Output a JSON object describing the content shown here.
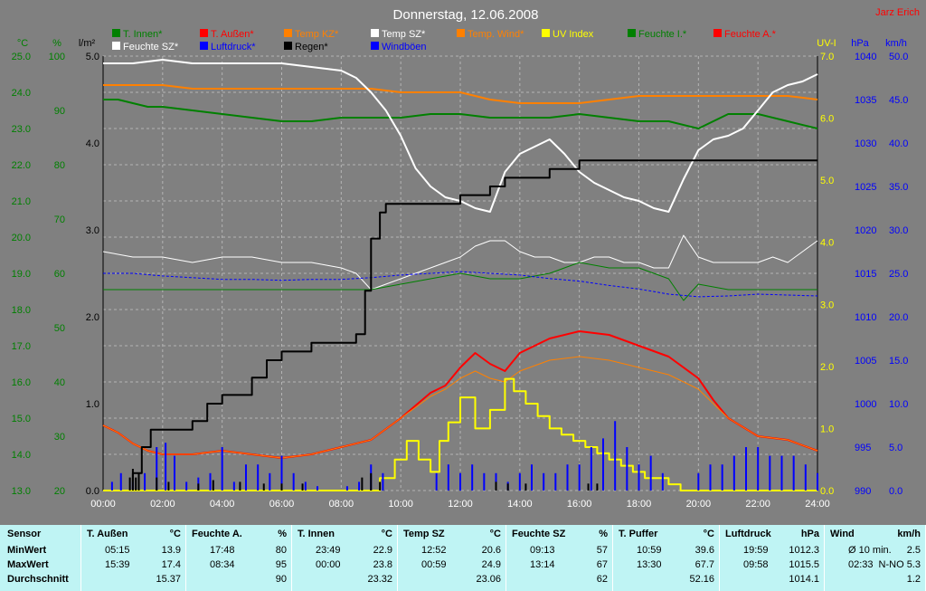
{
  "chart_data": {
    "type": "line",
    "title": "Donnerstag, 12.06.2008",
    "author": "Jarz Erich",
    "x_ticks": [
      "00:00",
      "02:00",
      "04:00",
      "06:00",
      "08:00",
      "10:00",
      "12:00",
      "14:00",
      "16:00",
      "18:00",
      "20:00",
      "22:00",
      "24:00"
    ],
    "axes": {
      "temp": {
        "unit": "°C",
        "color": "#008000",
        "min": 13.0,
        "max": 25.0,
        "ticks": [
          "25.0",
          "24.0",
          "23.0",
          "22.0",
          "21.0",
          "20.0",
          "19.0",
          "18.0",
          "17.0",
          "16.0",
          "15.0",
          "14.0",
          "13.0"
        ]
      },
      "humidity": {
        "unit": "%",
        "color": "#008000",
        "min": 20,
        "max": 100,
        "ticks": [
          "100",
          "90",
          "80",
          "70",
          "60",
          "50",
          "40",
          "30",
          "20"
        ]
      },
      "rain": {
        "unit": "l/m²",
        "color": "#000000",
        "min": 0,
        "max": 5,
        "ticks": [
          "5.0",
          "4.0",
          "3.0",
          "2.0",
          "1.0",
          "0.0"
        ]
      },
      "uv": {
        "unit": "UV-I",
        "color": "#ffff00",
        "min": 0,
        "max": 7,
        "ticks": [
          "7.0",
          "6.0",
          "5.0",
          "4.0",
          "3.0",
          "2.0",
          "1.0",
          "0.0"
        ]
      },
      "pressure": {
        "unit": "hPa",
        "color": "#0000ff",
        "min": 990,
        "max": 1040,
        "ticks": [
          "1040",
          "1035",
          "1030",
          "1025",
          "1020",
          "1015",
          "1010",
          "1005",
          "1000",
          "995",
          "990"
        ]
      },
      "wind": {
        "unit": "km/h",
        "color": "#0000ff",
        "min": 0,
        "max": 50,
        "ticks": [
          "50.0",
          "45.0",
          "40.0",
          "35.0",
          "30.0",
          "25.0",
          "20.0",
          "15.0",
          "10.0",
          "5.0",
          "0.0"
        ]
      }
    },
    "legend": [
      {
        "name": "T. Innen*",
        "color": "#008000"
      },
      {
        "name": "T. Außen*",
        "color": "#ff0000"
      },
      {
        "name": "Temp KZ*",
        "color": "#ff8000"
      },
      {
        "name": "Temp SZ*",
        "color": "#ffffff"
      },
      {
        "name": "Temp. Wind*",
        "color": "#ff8000"
      },
      {
        "name": "UV Index",
        "color": "#ffff00"
      },
      {
        "name": "Feuchte I.*",
        "color": "#008000"
      },
      {
        "name": "Feuchte A.*",
        "color": "#ff0000"
      },
      {
        "name": "Feuchte SZ*",
        "color": "#ffffff"
      },
      {
        "name": "Luftdruck*",
        "color": "#0000ff"
      },
      {
        "name": "Regen*",
        "color": "#000000"
      },
      {
        "name": "Windböen",
        "color": "#0000ff"
      }
    ],
    "series": [
      {
        "key": "t_aussen",
        "axis": "temp",
        "color": "#ff0000",
        "width": 2,
        "x": [
          0,
          0.5,
          1,
          1.5,
          2,
          3,
          4,
          5,
          6,
          7,
          8,
          9,
          10,
          11,
          11.5,
          12,
          12.5,
          13,
          13.5,
          14,
          15,
          16,
          17,
          18,
          19,
          20,
          20.5,
          21,
          22,
          23,
          24
        ],
        "y": [
          14.8,
          14.6,
          14.3,
          14.1,
          14.0,
          14.0,
          14.1,
          14.0,
          13.9,
          14.0,
          14.2,
          14.4,
          15.0,
          15.7,
          15.9,
          16.4,
          16.8,
          16.5,
          16.3,
          16.8,
          17.2,
          17.4,
          17.3,
          17.0,
          16.7,
          16.1,
          15.5,
          15.0,
          14.5,
          14.4,
          14.1
        ]
      },
      {
        "key": "temp_wind",
        "axis": "temp",
        "color": "#ff8000",
        "width": 1,
        "x": [
          0,
          0.5,
          1,
          1.5,
          2,
          3,
          4,
          5,
          6,
          7,
          8,
          9,
          10,
          11,
          11.5,
          12,
          12.5,
          13,
          13.5,
          14,
          15,
          16,
          17,
          18,
          19,
          20,
          20.5,
          21,
          22,
          23,
          24
        ],
        "y": [
          14.8,
          14.6,
          14.3,
          14.1,
          14.0,
          14.0,
          14.1,
          14.0,
          13.9,
          14.0,
          14.2,
          14.4,
          15.0,
          15.6,
          15.8,
          16.1,
          16.3,
          16.1,
          16.0,
          16.3,
          16.6,
          16.7,
          16.6,
          16.4,
          16.2,
          15.8,
          15.4,
          15.0,
          14.5,
          14.4,
          14.1
        ]
      },
      {
        "key": "temp_kz",
        "axis": "temp",
        "color": "#ff8000",
        "width": 2,
        "x": [
          0,
          1,
          2,
          3,
          4,
          5,
          6,
          7,
          8,
          9,
          10,
          11,
          12,
          13,
          14,
          15,
          16,
          17,
          18,
          19,
          20,
          21,
          22,
          23,
          24
        ],
        "y": [
          24.2,
          24.2,
          24.2,
          24.1,
          24.1,
          24.1,
          24.1,
          24.1,
          24.1,
          24.1,
          24.0,
          24.0,
          24.0,
          23.8,
          23.7,
          23.7,
          23.7,
          23.8,
          23.9,
          23.9,
          23.9,
          23.9,
          23.9,
          23.9,
          23.8
        ]
      },
      {
        "key": "t_innen",
        "axis": "temp",
        "color": "#008000",
        "width": 2,
        "x": [
          0,
          0.5,
          1,
          1.5,
          2,
          3,
          4,
          5,
          6,
          7,
          8,
          9,
          10,
          11,
          12,
          13,
          14,
          15,
          16,
          17,
          18,
          19,
          20,
          21,
          22,
          23,
          24
        ],
        "y": [
          23.8,
          23.8,
          23.7,
          23.6,
          23.6,
          23.5,
          23.4,
          23.3,
          23.2,
          23.2,
          23.3,
          23.3,
          23.3,
          23.4,
          23.4,
          23.3,
          23.3,
          23.3,
          23.4,
          23.3,
          23.2,
          23.2,
          23.0,
          23.4,
          23.4,
          23.2,
          23.0
        ]
      },
      {
        "key": "temp_sz",
        "axis": "temp",
        "color": "#ffffff",
        "width": 2,
        "x": [
          0,
          1,
          2,
          3,
          4,
          5,
          6,
          7,
          8,
          8.5,
          9,
          9.5,
          10,
          10.5,
          11,
          11.5,
          12,
          12.5,
          13,
          13.5,
          14,
          14.5,
          15,
          15.5,
          16,
          16.5,
          17,
          17.5,
          18,
          18.5,
          19,
          19.5,
          20,
          20.5,
          21,
          21.5,
          22,
          22.5,
          23,
          23.5,
          24
        ],
        "y": [
          24.8,
          24.8,
          24.9,
          24.8,
          24.8,
          24.8,
          24.8,
          24.7,
          24.6,
          24.4,
          24.0,
          23.5,
          22.8,
          21.9,
          21.4,
          21.1,
          21.0,
          20.8,
          20.7,
          21.8,
          22.3,
          22.5,
          22.7,
          22.3,
          21.8,
          21.5,
          21.3,
          21.1,
          21.0,
          20.8,
          20.7,
          21.6,
          22.4,
          22.7,
          22.8,
          23.0,
          23.5,
          24.0,
          24.2,
          24.3,
          24.5
        ]
      },
      {
        "key": "feuchte_sz",
        "axis": "humidity",
        "color": "#ffffff",
        "width": 1,
        "x": [
          0,
          1,
          2,
          3,
          4,
          5,
          6,
          7,
          8,
          8.5,
          9,
          9.5,
          10,
          10.5,
          11,
          11.5,
          12,
          12.5,
          13,
          13.5,
          14,
          14.5,
          15,
          15.5,
          16,
          16.5,
          17,
          17.5,
          18,
          18.5,
          19,
          19.5,
          20,
          20.5,
          21,
          21.5,
          22,
          22.5,
          23,
          23.5,
          24
        ],
        "y": [
          64,
          63,
          63,
          62,
          63,
          63,
          62,
          62,
          61,
          60,
          57,
          58,
          59,
          60,
          61,
          62,
          63,
          65,
          66,
          66,
          64,
          63,
          63,
          62,
          62,
          63,
          63,
          62,
          62,
          61,
          61,
          67,
          63,
          62,
          62,
          62,
          62,
          63,
          62,
          64,
          66
        ]
      },
      {
        "key": "feuchte_i",
        "axis": "humidity",
        "color": "#008000",
        "width": 1,
        "x": [
          0,
          1,
          2,
          3,
          4,
          5,
          6,
          7,
          8,
          9,
          10,
          11,
          12,
          13,
          14,
          15,
          16,
          17,
          18,
          19,
          19.5,
          20,
          21,
          22,
          23,
          24
        ],
        "y": [
          57,
          57,
          57,
          57,
          57,
          57,
          57,
          57,
          57,
          57,
          58,
          59,
          60,
          59,
          59,
          60,
          62,
          61,
          61,
          59,
          55,
          58,
          57,
          57,
          57,
          57
        ]
      },
      {
        "key": "luftdruck",
        "axis": "pressure",
        "color": "#0000ff",
        "width": 1,
        "dashed": true,
        "x": [
          0,
          1,
          2,
          3,
          4,
          5,
          6,
          7,
          8,
          9,
          10,
          11,
          12,
          13,
          14,
          15,
          16,
          17,
          18,
          19,
          20,
          21,
          22,
          23,
          24
        ],
        "y": [
          1015.0,
          1015.0,
          1014.7,
          1014.5,
          1014.3,
          1014.3,
          1014.2,
          1014.3,
          1014.3,
          1014.5,
          1014.8,
          1015.0,
          1015.2,
          1015.0,
          1014.8,
          1014.4,
          1014.1,
          1013.6,
          1013.2,
          1012.6,
          1012.3,
          1012.4,
          1012.6,
          1012.5,
          1012.4
        ]
      },
      {
        "key": "regen",
        "axis": "rain",
        "color": "#000000",
        "width": 2,
        "step": true,
        "x": [
          0,
          0.8,
          1,
          1.3,
          1.6,
          2,
          3,
          3.5,
          4,
          5,
          5.5,
          6,
          7,
          8,
          8.5,
          8.8,
          9,
          9.3,
          9.5,
          10,
          11,
          12,
          13,
          13.5,
          14,
          15,
          16,
          24
        ],
        "y": [
          0,
          0,
          0.2,
          0.5,
          0.7,
          0.7,
          0.8,
          1.0,
          1.1,
          1.3,
          1.5,
          1.6,
          1.7,
          1.7,
          1.8,
          2.3,
          2.9,
          3.2,
          3.3,
          3.3,
          3.3,
          3.4,
          3.5,
          3.6,
          3.6,
          3.7,
          3.8,
          3.8
        ]
      },
      {
        "key": "uv_index",
        "axis": "uv",
        "color": "#ffff00",
        "width": 2,
        "step": true,
        "x": [
          0,
          8.8,
          9.3,
          9.8,
          10.2,
          10.6,
          11,
          11.3,
          11.6,
          12,
          12.5,
          13,
          13.5,
          13.8,
          14.2,
          14.6,
          15,
          15.4,
          15.8,
          16.2,
          16.6,
          17,
          17.4,
          17.8,
          18.2,
          18.6,
          19,
          19.4,
          24
        ],
        "y": [
          0,
          0,
          0.2,
          0.5,
          0.8,
          0.5,
          0.3,
          0.8,
          1.1,
          1.5,
          1.0,
          1.3,
          1.8,
          1.6,
          1.4,
          1.2,
          1.0,
          0.9,
          0.8,
          0.7,
          0.6,
          0.5,
          0.4,
          0.3,
          0.2,
          0.2,
          0.1,
          0,
          0
        ]
      },
      {
        "key": "windboeen",
        "axis": "wind",
        "color": "#0000ff",
        "width": 1,
        "bars": true,
        "x": [
          0.3,
          0.6,
          1,
          1.4,
          1.8,
          2.1,
          2.4,
          2.8,
          3.2,
          3.6,
          4,
          4.4,
          4.8,
          5.2,
          5.6,
          6,
          6.4,
          6.8,
          7.2,
          8.2,
          8.6,
          9,
          9.4,
          11.2,
          11.6,
          12,
          12.4,
          12.8,
          13.2,
          13.6,
          14,
          14.4,
          14.8,
          15.2,
          15.6,
          16,
          16.4,
          16.8,
          17.2,
          17.6,
          18,
          18.4,
          18.8,
          20,
          20.4,
          20.8,
          21.2,
          21.6,
          22,
          22.4,
          22.8,
          23.2,
          23.6,
          24
        ],
        "y": [
          1,
          2,
          1,
          2,
          5,
          5.5,
          4,
          1,
          1.5,
          2,
          5,
          1,
          3,
          3,
          2,
          4,
          2,
          1,
          0.5,
          0.5,
          1,
          3,
          2,
          2,
          3,
          2,
          3,
          2,
          2,
          1,
          2,
          3,
          2,
          2,
          3,
          3,
          5,
          6,
          8,
          5,
          3,
          4,
          2,
          2,
          3,
          3,
          4,
          5,
          5,
          4,
          4,
          4,
          3,
          2
        ]
      },
      {
        "key": "regen_bars",
        "axis": "wind",
        "color": "#000000",
        "width": 1,
        "bars": true,
        "x": [
          0.9,
          1.0,
          1.1,
          1.2,
          1.8,
          2.2,
          3.2,
          3.7,
          4.6,
          5.4,
          6.0,
          6.7,
          8.7,
          9.0,
          9.3,
          13.2,
          13.6,
          14.2,
          16.3,
          16.6
        ],
        "y": [
          1.5,
          2.5,
          1.5,
          2,
          1.5,
          1,
          0.8,
          1.2,
          1,
          0.8,
          0.8,
          0.8,
          1.5,
          2,
          1,
          1,
          0.8,
          0.8,
          0.8,
          0.8
        ]
      }
    ]
  },
  "stats_table": {
    "row_labels": [
      "Sensor",
      "MinWert",
      "MaxWert",
      "Durchschnitt"
    ],
    "columns": [
      {
        "name": "T. Außen",
        "unit": "°C",
        "min_time": "05:15",
        "min": "13.9",
        "max_time": "15:39",
        "max": "17.4",
        "avg": "15.37"
      },
      {
        "name": "Feuchte A.",
        "unit": "%",
        "min_time": "17:48",
        "min": "80",
        "max_time": "08:34",
        "max": "95",
        "avg": "90"
      },
      {
        "name": "T. Innen",
        "unit": "°C",
        "min_time": "23:49",
        "min": "22.9",
        "max_time": "00:00",
        "max": "23.8",
        "avg": "23.32"
      },
      {
        "name": "Temp SZ",
        "unit": "°C",
        "min_time": "12:52",
        "min": "20.6",
        "max_time": "00:59",
        "max": "24.9",
        "avg": "23.06"
      },
      {
        "name": "Feuchte SZ",
        "unit": "%",
        "min_time": "09:13",
        "min": "57",
        "max_time": "13:14",
        "max": "67",
        "avg": "62"
      },
      {
        "name": "T. Puffer",
        "unit": "°C",
        "min_time": "10:59",
        "min": "39.6",
        "max_time": "13:30",
        "max": "67.7",
        "avg": "52.16"
      },
      {
        "name": "Luftdruck",
        "unit": "hPa",
        "min_time": "19:59",
        "min": "1012.3",
        "max_time": "09:58",
        "max": "1015.5",
        "avg": "1014.1"
      },
      {
        "name": "Wind",
        "unit": "km/h",
        "min_time": "Ø 10 min.",
        "min": "2.5",
        "max_time": "02:33",
        "max": "N-NO 5.3",
        "avg": "1.2"
      }
    ]
  }
}
